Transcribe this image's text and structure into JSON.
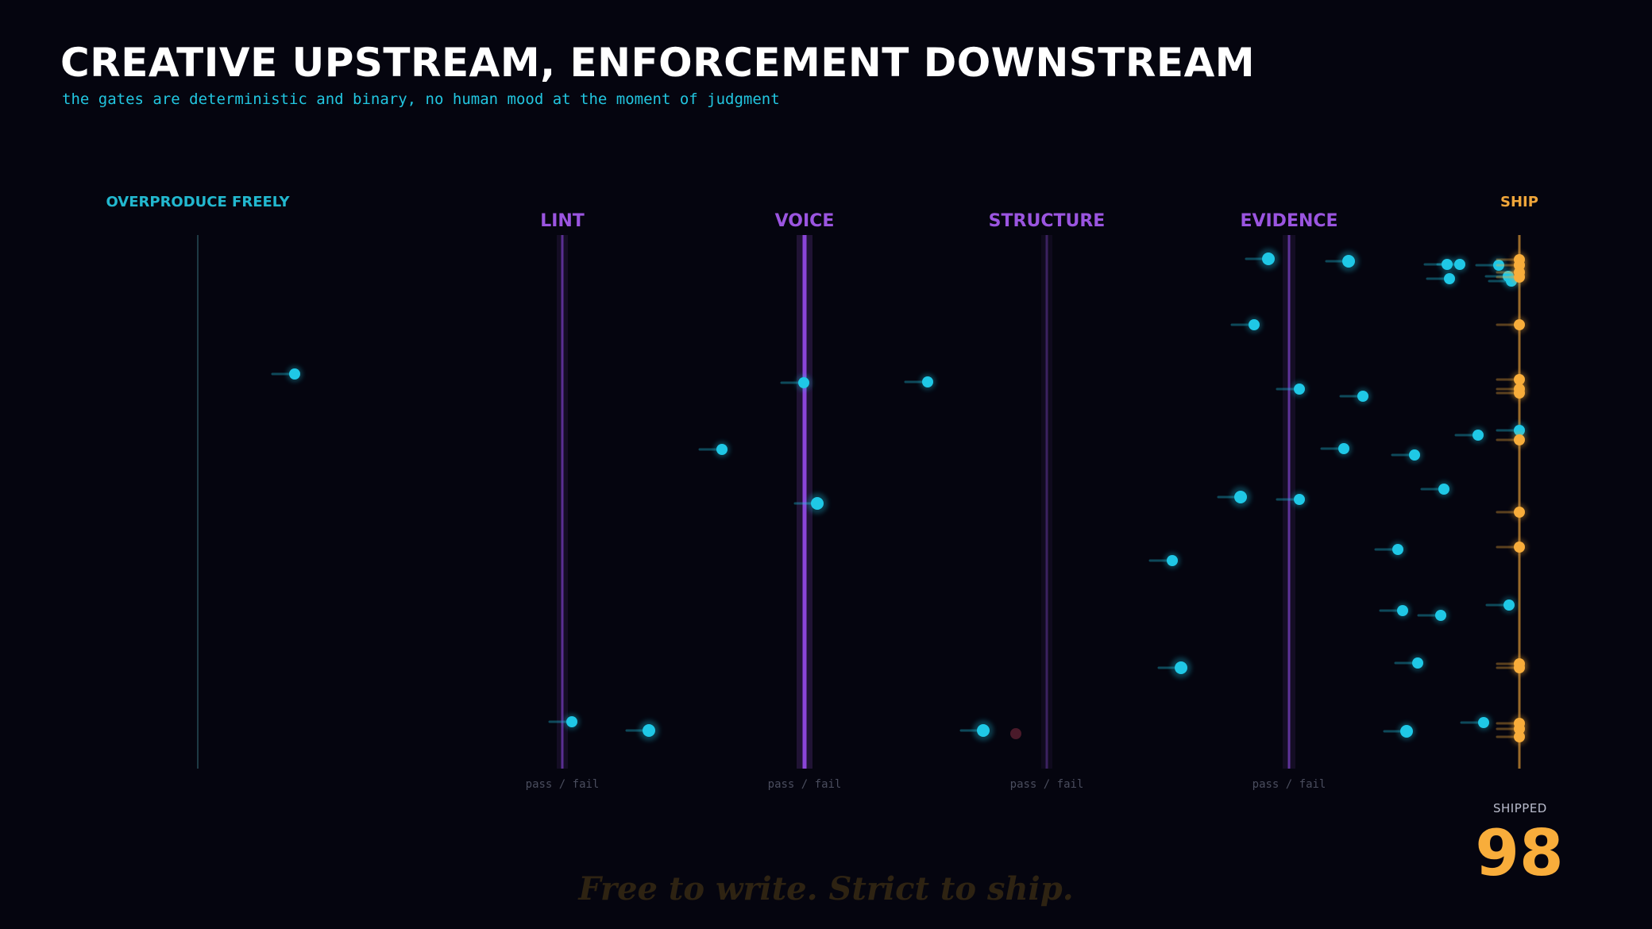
{
  "header": {
    "title": "CREATIVE UPSTREAM, ENFORCEMENT DOWNSTREAM",
    "subtitle": "the gates are deterministic and binary, no human mood at the moment of judgment"
  },
  "stages": [
    {
      "label": "OVERPRODUCE FREELY",
      "kind": "source"
    },
    {
      "label": "LINT",
      "kind": "gate",
      "note": "pass / fail"
    },
    {
      "label": "VOICE",
      "kind": "gate",
      "note": "pass / fail"
    },
    {
      "label": "STRUCTURE",
      "kind": "gate",
      "note": "pass / fail"
    },
    {
      "label": "EVIDENCE",
      "kind": "gate",
      "note": "pass / fail"
    },
    {
      "label": "SHIP",
      "kind": "sink"
    }
  ],
  "summary": {
    "shipped_label": "SHIPPED",
    "shipped_count": "98"
  },
  "tagline": "Free to write. Strict to ship.",
  "colors": {
    "background": "#05050f",
    "source_accent": "#22b8cf",
    "gate_accent": "#9b55e0",
    "ship_accent": "#f8ad3b",
    "particle": "#1fc8e6",
    "rejected": "#4a1a2a"
  }
}
